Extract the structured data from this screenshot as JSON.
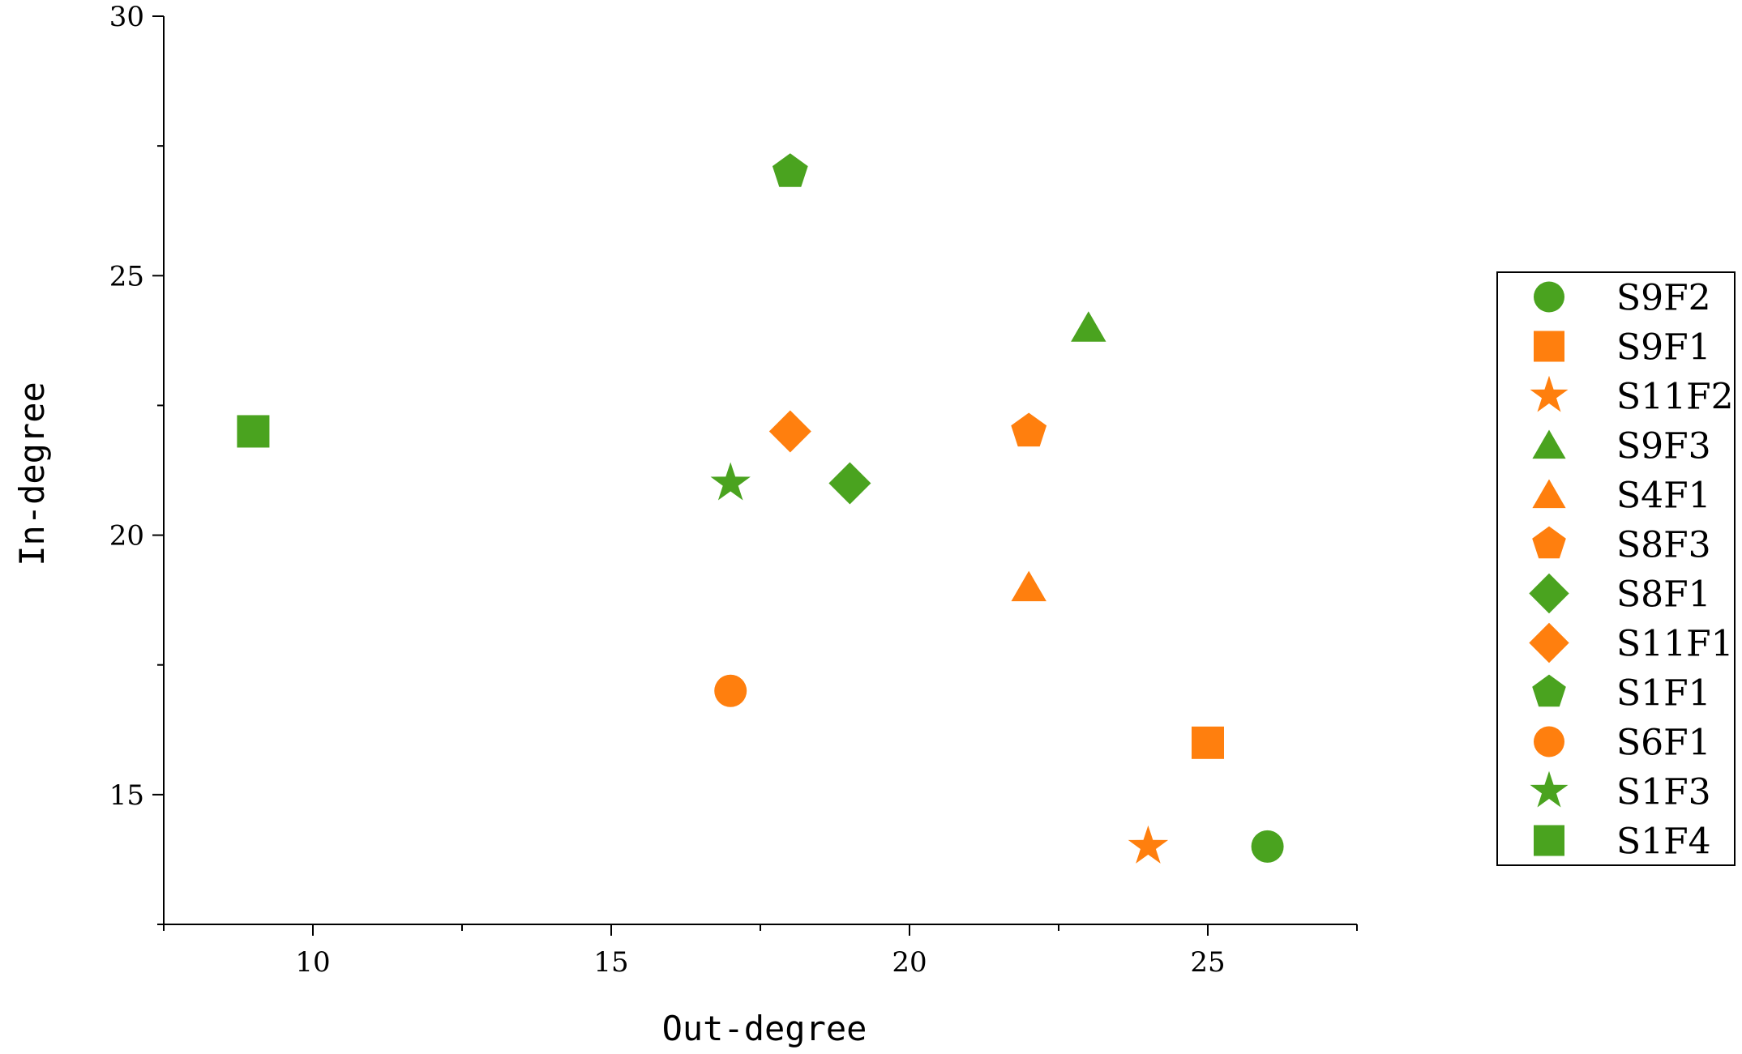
{
  "chart_data": {
    "type": "scatter",
    "title": "",
    "xlabel": "Out-degree",
    "ylabel": "In-degree",
    "xlim": [
      7.5,
      27.5
    ],
    "ylim": [
      12.5,
      30
    ],
    "xticks": [
      10,
      15,
      20,
      25
    ],
    "yticks": [
      15,
      20,
      25,
      30
    ],
    "x_minor_ticks": [
      7.5,
      12.5,
      17.5,
      22.5,
      27.5
    ],
    "y_minor_ticks": [
      12.5,
      17.5,
      22.5,
      27.5
    ],
    "grid": false,
    "legend_position": "right",
    "colors": {
      "green": "#4aa31f",
      "orange": "#ff7f0e"
    },
    "series": [
      {
        "name": "S9F2",
        "marker": "circle",
        "color": "green",
        "points": [
          {
            "x": 26,
            "y": 14
          }
        ]
      },
      {
        "name": "S9F1",
        "marker": "square",
        "color": "orange",
        "points": [
          {
            "x": 25,
            "y": 16
          }
        ]
      },
      {
        "name": "S11F2",
        "marker": "star",
        "color": "orange",
        "points": [
          {
            "x": 24,
            "y": 14
          }
        ]
      },
      {
        "name": "S9F3",
        "marker": "triangle",
        "color": "green",
        "points": [
          {
            "x": 23,
            "y": 24
          }
        ]
      },
      {
        "name": "S4F1",
        "marker": "triangle",
        "color": "orange",
        "points": [
          {
            "x": 22,
            "y": 19
          }
        ]
      },
      {
        "name": "S8F3",
        "marker": "pentagon",
        "color": "orange",
        "points": [
          {
            "x": 22,
            "y": 22
          }
        ]
      },
      {
        "name": "S8F1",
        "marker": "diamond",
        "color": "green",
        "points": [
          {
            "x": 19,
            "y": 21
          }
        ]
      },
      {
        "name": "S11F1",
        "marker": "diamond",
        "color": "orange",
        "points": [
          {
            "x": 18,
            "y": 22
          }
        ]
      },
      {
        "name": "S1F1",
        "marker": "pentagon",
        "color": "green",
        "points": [
          {
            "x": 18,
            "y": 27
          }
        ]
      },
      {
        "name": "S6F1",
        "marker": "circle",
        "color": "orange",
        "points": [
          {
            "x": 17,
            "y": 17
          }
        ]
      },
      {
        "name": "S1F3",
        "marker": "star",
        "color": "green",
        "points": [
          {
            "x": 17,
            "y": 21
          }
        ]
      },
      {
        "name": "S1F4",
        "marker": "square",
        "color": "green",
        "points": [
          {
            "x": 9,
            "y": 22
          }
        ]
      }
    ]
  }
}
